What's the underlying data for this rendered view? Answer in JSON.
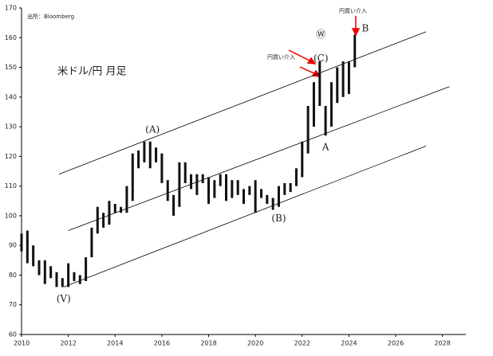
{
  "chart_data": {
    "type": "range_bar",
    "title": "米ドル/円 月足",
    "source": "出所：Bloomberg",
    "x": [
      2010,
      2010.25,
      2010.5,
      2010.75,
      2011,
      2011.25,
      2011.5,
      2011.75,
      2012,
      2012.25,
      2012.5,
      2012.75,
      2013,
      2013.25,
      2013.5,
      2013.75,
      2014,
      2014.25,
      2014.5,
      2014.75,
      2015,
      2015.25,
      2015.5,
      2015.75,
      2016,
      2016.25,
      2016.5,
      2016.75,
      2017,
      2017.25,
      2017.5,
      2017.75,
      2018,
      2018.25,
      2018.5,
      2018.75,
      2019,
      2019.25,
      2019.5,
      2019.75,
      2020,
      2020.25,
      2020.5,
      2020.75,
      2021,
      2021.25,
      2021.5,
      2021.75,
      2022,
      2022.25,
      2022.5,
      2022.75,
      2023,
      2023.25,
      2023.5,
      2023.75,
      2024,
      2024.25
    ],
    "high": [
      94,
      95,
      90,
      85,
      85,
      83,
      81,
      79,
      84,
      81,
      80,
      86,
      96,
      103,
      101,
      105,
      104,
      103,
      110,
      121,
      122,
      125,
      125,
      123,
      121,
      112,
      107,
      118,
      118,
      114,
      114,
      114,
      113,
      112,
      114,
      114,
      112,
      112,
      109,
      110,
      112,
      109,
      107,
      106,
      110,
      111,
      111,
      116,
      125,
      137,
      145,
      152,
      137,
      145,
      150,
      152,
      152,
      161
    ],
    "low": [
      88,
      84,
      83,
      80,
      77,
      79,
      76,
      76,
      76,
      78,
      77,
      78,
      86,
      94,
      96,
      97,
      101,
      101,
      101,
      105,
      116,
      118,
      116,
      118,
      111,
      105,
      100,
      103,
      111,
      109,
      107,
      111,
      104,
      106,
      110,
      105,
      106,
      107,
      104,
      107,
      101,
      106,
      104,
      102,
      103,
      107,
      108,
      110,
      113,
      121,
      130,
      137,
      127,
      130,
      138,
      140,
      141,
      150
    ],
    "color": "#111111",
    "trend_lines": [
      {
        "x": [
          2011.6,
          2027.3
        ],
        "values": [
          114,
          162
        ]
      },
      {
        "x": [
          2012,
          2028.3
        ],
        "values": [
          95,
          143.5
        ]
      },
      {
        "x": [
          2011.8,
          2027.3
        ],
        "values": [
          76,
          123.5
        ]
      }
    ],
    "annotations": [
      {
        "text": "(A)",
        "x": 2015.6,
        "y": 129
      },
      {
        "text": "(V)",
        "x": 2011.8,
        "y": 72
      },
      {
        "text": "(B)",
        "x": 2021,
        "y": 99
      },
      {
        "text": "A",
        "x": 2023,
        "y": 123
      },
      {
        "text": "(C)",
        "x": 2022.8,
        "y": 153
      },
      {
        "text": "Ⓦ",
        "x": 2022.8,
        "y": 161
      },
      {
        "text": "B",
        "x": 2024.7,
        "y": 163
      }
    ],
    "intervention_label": "円買い介入",
    "xlim": [
      2010,
      2029
    ],
    "ylim": [
      60,
      170
    ],
    "xticks": [
      2010,
      2012,
      2014,
      2016,
      2018,
      2020,
      2022,
      2024,
      2026,
      2028
    ],
    "yticks": [
      60,
      70,
      80,
      90,
      100,
      110,
      120,
      130,
      140,
      150,
      160,
      170
    ]
  }
}
